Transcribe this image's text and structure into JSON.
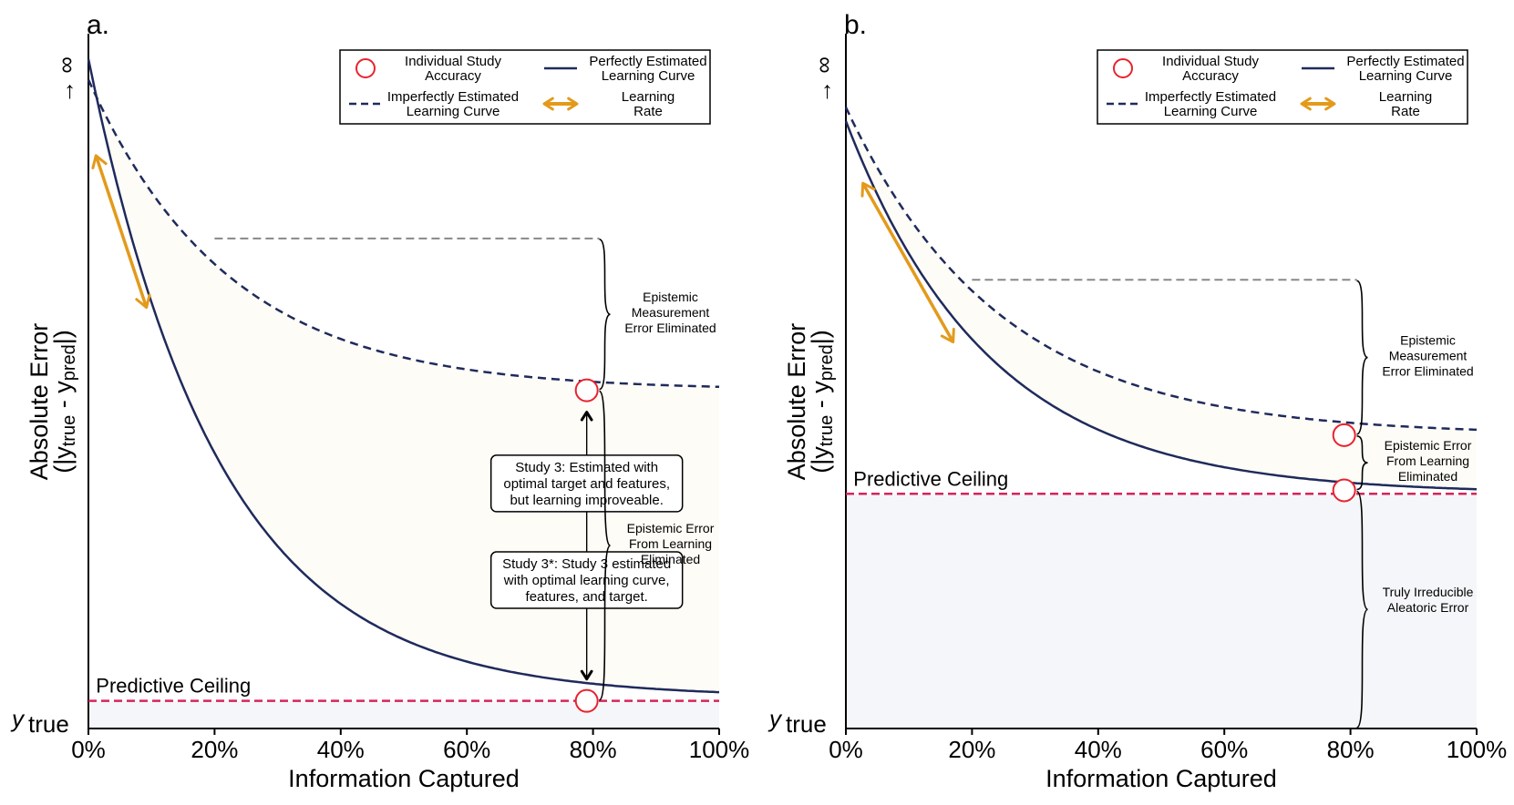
{
  "chart_data": [
    {
      "type": "line",
      "panel_label": "a.",
      "xlabel": "Information Captured",
      "ylabel_line1": "Absolute Error",
      "ylabel_line2_pre": "(|y",
      "ylabel_line2_sub1": "true",
      "ylabel_line2_mid": " - y",
      "ylabel_line2_sub2": "pred",
      "ylabel_line2_post": "|)",
      "y_top_label": "∞",
      "y_top_arrow": "→",
      "y_bottom_label": "y",
      "y_bottom_sub": "true",
      "x_ticks": [
        "0%",
        "20%",
        "40%",
        "60%",
        "80%",
        "100%"
      ],
      "xlim": [
        0,
        100
      ],
      "ylim": [
        0,
        1
      ],
      "series": [
        {
          "name": "Perfectly Estimated Learning Curve",
          "style": "solid",
          "color": "#1f2a5c",
          "start": 0.97,
          "asymptote": 0.045,
          "k": 4.8
        },
        {
          "name": "Imperfectly Estimated Learning Curve",
          "style": "dashed",
          "color": "#1f2a5c",
          "start": 0.94,
          "asymptote": 0.49,
          "k": 4.5
        }
      ],
      "predictive_ceiling": {
        "label": "Predictive Ceiling",
        "value": 0.04,
        "color": "#d6245a"
      },
      "reference_line": {
        "x_from": 20,
        "x_to": 81,
        "value": 0.71
      },
      "study_points": [
        {
          "x": 79,
          "y": 0.49
        },
        {
          "x": 79,
          "y": 0.04
        }
      ],
      "learning_rate_arrow": {
        "x_from": 1.2,
        "x_to": 9.2,
        "y_from": 0.83,
        "y_to": 0.61
      },
      "study_arrow": {
        "x": 79,
        "y_from": 0.04,
        "y_to": 0.49
      },
      "braces": [
        {
          "y_from": 0.49,
          "y_to": 0.71,
          "label": [
            "Epistemic",
            "Measurement",
            "Error Eliminated"
          ]
        },
        {
          "y_from": 0.04,
          "y_to": 0.49,
          "label": [
            "Epistemic Error",
            "From Learning",
            "Eliminated"
          ]
        }
      ],
      "boxes": [
        {
          "lines": [
            "Study 3: Estimated with",
            "optimal target and features,",
            "but learning improveable."
          ]
        },
        {
          "lines": [
            "Study 3*: Study 3 estimated",
            "with optimal learning curve,",
            "features, and target."
          ]
        }
      ],
      "legend": {
        "placement": "top-right",
        "entries": [
          {
            "key": "circle",
            "lines": [
              "Individual Study",
              "Accuracy"
            ]
          },
          {
            "key": "solid",
            "lines": [
              "Perfectly Estimated",
              "Learning Curve"
            ]
          },
          {
            "key": "dashed",
            "lines": [
              "Imperfectly Estimated",
              "Learning Curve"
            ]
          },
          {
            "key": "arrow",
            "lines": [
              "Learning",
              "Rate"
            ]
          }
        ]
      }
    },
    {
      "type": "line",
      "panel_label": "b.",
      "xlabel": "Information Captured",
      "ylabel_line1": "Absolute Error",
      "ylabel_line2_pre": "(|y",
      "ylabel_line2_sub1": "true",
      "ylabel_line2_mid": " - y",
      "ylabel_line2_sub2": "pred",
      "ylabel_line2_post": "|)",
      "y_top_label": "∞",
      "y_top_arrow": "→",
      "y_bottom_label": "y",
      "y_bottom_sub": "true",
      "x_ticks": [
        "0%",
        "20%",
        "40%",
        "60%",
        "80%",
        "100%"
      ],
      "xlim": [
        0,
        100
      ],
      "ylim": [
        0,
        1
      ],
      "series": [
        {
          "name": "Perfectly Estimated Learning Curve",
          "style": "solid",
          "color": "#1f2a5c",
          "start": 0.88,
          "asymptote": 0.34,
          "k": 4.4
        },
        {
          "name": "Imperfectly Estimated Learning Curve",
          "style": "dashed",
          "color": "#1f2a5c",
          "start": 0.9,
          "asymptote": 0.425,
          "k": 4.1
        }
      ],
      "predictive_ceiling": {
        "label": "Predictive Ceiling",
        "value": 0.34,
        "color": "#d6245a"
      },
      "reference_line": {
        "x_from": 20,
        "x_to": 81,
        "value": 0.65
      },
      "study_points": [
        {
          "x": 79,
          "y": 0.425
        },
        {
          "x": 79,
          "y": 0.345
        }
      ],
      "learning_rate_arrow": {
        "x_from": 2.7,
        "x_to": 17.0,
        "y_from": 0.79,
        "y_to": 0.56
      },
      "braces": [
        {
          "y_from": 0.425,
          "y_to": 0.65,
          "label": [
            "Epistemic",
            "Measurement",
            "Error Eliminated"
          ]
        },
        {
          "y_from": 0.345,
          "y_to": 0.425,
          "label": [
            "Epistemic Error",
            "From Learning",
            "Eliminated"
          ]
        },
        {
          "y_from": 0.0,
          "y_to": 0.345,
          "label": [
            "Truly Irreducible",
            "Aleatoric Error"
          ]
        }
      ],
      "legend": {
        "placement": "top-right",
        "entries": [
          {
            "key": "circle",
            "lines": [
              "Individual Study",
              "Accuracy"
            ]
          },
          {
            "key": "solid",
            "lines": [
              "Perfectly Estimated",
              "Learning Curve"
            ]
          },
          {
            "key": "dashed",
            "lines": [
              "Imperfectly Estimated",
              "Learning Curve"
            ]
          },
          {
            "key": "arrow",
            "lines": [
              "Learning",
              "Rate"
            ]
          }
        ]
      }
    }
  ]
}
